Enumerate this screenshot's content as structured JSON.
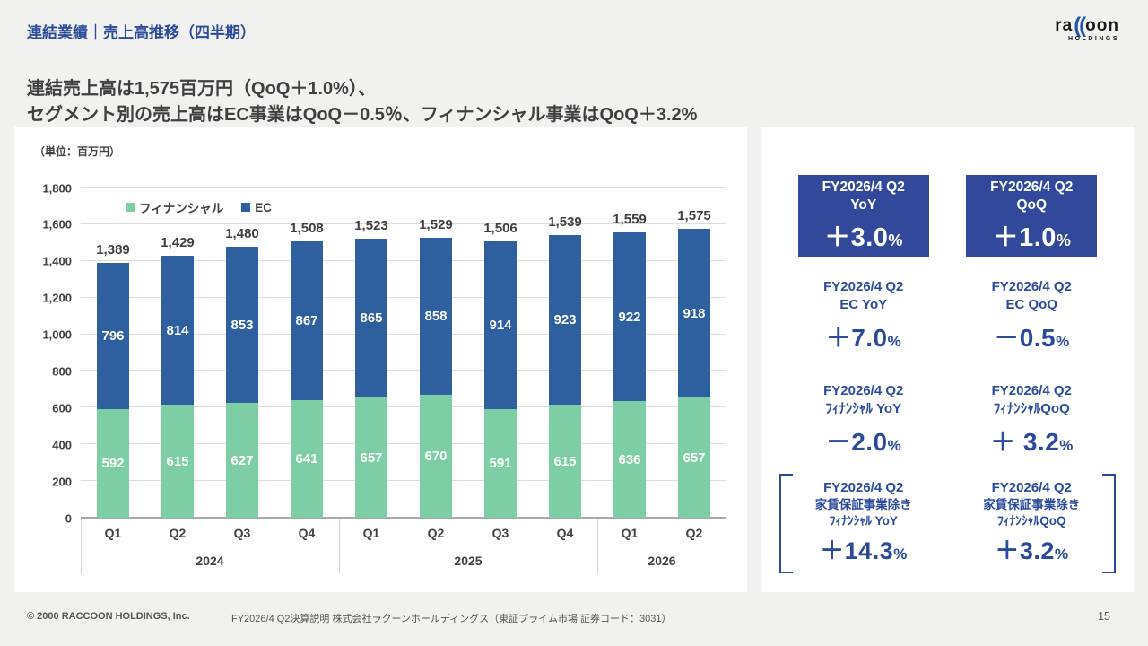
{
  "header": {
    "title": "連結業績｜売上高推移（四半期）",
    "subtitle_line1": "連結売上高は1,575百万円（QoQ＋1.0%）、",
    "subtitle_line2": "セグメント別の売上高はEC事業はQoQ－0.5％、フィナンシャル事業はQoQ＋3.2%",
    "logo": {
      "part1": "ra",
      "part2": "((",
      "part3": "oon",
      "sub": "HOLDINGS"
    }
  },
  "chart_data": {
    "type": "bar",
    "stacked": true,
    "unit_label": "（単位：百万円）",
    "categories": [
      "Q1",
      "Q2",
      "Q3",
      "Q4",
      "Q1",
      "Q2",
      "Q3",
      "Q4",
      "Q1",
      "Q2"
    ],
    "year_groups": [
      {
        "label": "2024",
        "span": 4
      },
      {
        "label": "2025",
        "span": 4
      },
      {
        "label": "2026",
        "span": 2
      }
    ],
    "series": [
      {
        "name": "フィナンシャル",
        "color": "#7DCEA4",
        "values": [
          592,
          615,
          627,
          641,
          657,
          670,
          591,
          615,
          636,
          657
        ]
      },
      {
        "name": "EC",
        "color": "#2E5F9E",
        "values": [
          796,
          814,
          853,
          867,
          865,
          858,
          914,
          923,
          922,
          918
        ]
      }
    ],
    "totals": [
      "1,389",
      "1,429",
      "1,480",
      "1,508",
      "1,523",
      "1,529",
      "1,506",
      "1,539",
      "1,559",
      "1,575"
    ],
    "ylim": [
      0,
      1800
    ],
    "ytick_step": 200,
    "ytick_labels": [
      "0",
      "200",
      "400",
      "600",
      "800",
      "1,000",
      "1,200",
      "1,400",
      "1,600",
      "1,800"
    ],
    "grid": true,
    "legend_position": "inside-top-left"
  },
  "kpi_panel": {
    "rows": [
      {
        "style": "box",
        "cells": [
          {
            "lines": [
              "FY2026/4 Q2",
              "YoY"
            ],
            "value": "＋3.0",
            "unit": "%"
          },
          {
            "lines": [
              "FY2026/4 Q2",
              "QoQ"
            ],
            "value": "＋1.0",
            "unit": "%"
          }
        ]
      },
      {
        "style": "plain",
        "cells": [
          {
            "lines": [
              "FY2026/4 Q2",
              "EC YoY"
            ],
            "value": "＋7.0",
            "unit": "%"
          },
          {
            "lines": [
              "FY2026/4 Q2",
              "EC QoQ"
            ],
            "value": "－0.5",
            "unit": "%"
          }
        ]
      },
      {
        "style": "plain",
        "cells": [
          {
            "lines": [
              "FY2026/4 Q2",
              "ﾌｨﾅﾝｼｬﾙ YoY"
            ],
            "value": "－2.0",
            "unit": "%"
          },
          {
            "lines": [
              "FY2026/4 Q2",
              "ﾌｨﾅﾝｼｬﾙQoQ"
            ],
            "value": "＋ 3.2",
            "unit": "%"
          }
        ]
      },
      {
        "style": "bracket",
        "cells": [
          {
            "lines": [
              "FY2026/4 Q2",
              "家賃保証事業除き",
              "ﾌｨﾅﾝｼｬﾙ YoY"
            ],
            "value": "＋14.3",
            "unit": "%"
          },
          {
            "lines": [
              "FY2026/4 Q2",
              "家賃保証事業除き",
              "ﾌｨﾅﾝｼｬﾙQoQ"
            ],
            "value": "＋3.2",
            "unit": "%"
          }
        ]
      }
    ]
  },
  "footer": {
    "copyright": "© 2000 RACCOON HOLDINGS, Inc.",
    "doc_title": "FY2026/4 Q2決算説明 株式会社ラクーンホールディングス（東証プライム市場 証券コード：3031）",
    "page_number": "15"
  }
}
